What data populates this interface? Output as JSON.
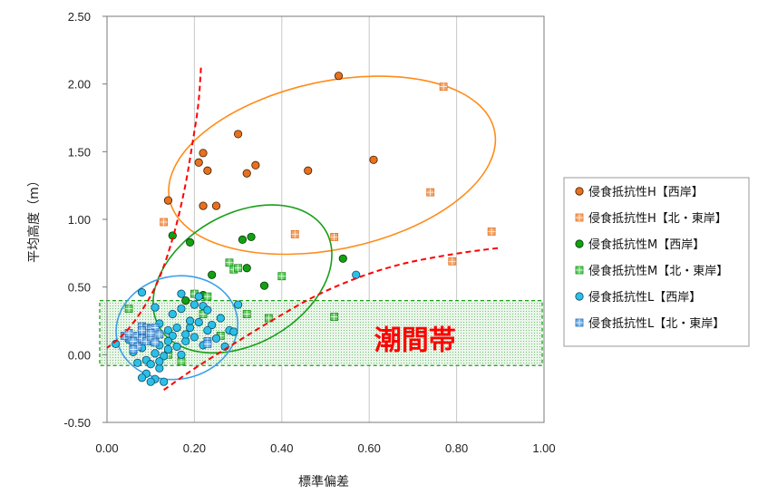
{
  "chart_data": {
    "type": "scatter",
    "xlabel": "標準偏差",
    "ylabel": "平均高度（m）",
    "xlim": [
      0,
      1.0
    ],
    "ylim": [
      -0.5,
      2.5
    ],
    "xticks": [
      "0.00",
      "0.20",
      "0.40",
      "0.60",
      "0.80",
      "1.00"
    ],
    "yticks": [
      "-0.50",
      "0.00",
      "0.50",
      "1.00",
      "1.50",
      "2.00",
      "2.50"
    ],
    "grid": "vertical",
    "legend_position": "right",
    "zone_label": "潮間帯",
    "zone_range": [
      -0.08,
      0.4
    ],
    "colors": {
      "H": "#ff8c1a",
      "M": "#1a9e1a",
      "L": "#3aa0e8",
      "curve": "#ff0000"
    },
    "series": [
      {
        "name": "侵食抵抗性H【西岸】",
        "marker": "circle",
        "fill": "#e8701f",
        "stroke": "#3a2000",
        "points": [
          [
            0.53,
            2.06
          ],
          [
            0.3,
            1.63
          ],
          [
            0.22,
            1.49
          ],
          [
            0.21,
            1.42
          ],
          [
            0.23,
            1.36
          ],
          [
            0.34,
            1.4
          ],
          [
            0.32,
            1.34
          ],
          [
            0.46,
            1.36
          ],
          [
            0.61,
            1.44
          ],
          [
            0.14,
            1.14
          ],
          [
            0.22,
            1.1
          ],
          [
            0.25,
            1.1
          ]
        ]
      },
      {
        "name": "侵食抵抗性H【北・東岸】",
        "marker": "square",
        "fill": "#f5a66b",
        "stroke": "#e07020",
        "points": [
          [
            0.77,
            1.98
          ],
          [
            0.74,
            1.2
          ],
          [
            0.13,
            0.98
          ],
          [
            0.43,
            0.89
          ],
          [
            0.52,
            0.87
          ],
          [
            0.88,
            0.91
          ],
          [
            0.79,
            0.69
          ]
        ]
      },
      {
        "name": "侵食抵抗性M【西岸】",
        "marker": "circle",
        "fill": "#14a014",
        "stroke": "#003a00",
        "points": [
          [
            0.15,
            0.88
          ],
          [
            0.19,
            0.83
          ],
          [
            0.33,
            0.87
          ],
          [
            0.31,
            0.85
          ],
          [
            0.32,
            0.64
          ],
          [
            0.24,
            0.59
          ],
          [
            0.36,
            0.51
          ],
          [
            0.54,
            0.71
          ],
          [
            0.22,
            0.44
          ],
          [
            0.18,
            0.4
          ]
        ]
      },
      {
        "name": "侵食抵抗性M【北・東岸】",
        "marker": "square",
        "fill": "#5fcf5f",
        "stroke": "#1a8a1a",
        "points": [
          [
            0.28,
            0.68
          ],
          [
            0.29,
            0.63
          ],
          [
            0.3,
            0.64
          ],
          [
            0.4,
            0.58
          ],
          [
            0.52,
            0.28
          ],
          [
            0.37,
            0.27
          ],
          [
            0.32,
            0.3
          ],
          [
            0.2,
            0.45
          ],
          [
            0.23,
            0.43
          ],
          [
            0.26,
            0.14
          ],
          [
            0.17,
            -0.05
          ],
          [
            0.22,
            0.3
          ],
          [
            0.14,
            0.0
          ],
          [
            0.05,
            0.34
          ]
        ]
      },
      {
        "name": "侵食抵抗性L【西岸】",
        "marker": "circle",
        "fill": "#2cc0e8",
        "stroke": "#0a4a66",
        "points": [
          [
            0.57,
            0.59
          ],
          [
            0.17,
            0.45
          ],
          [
            0.21,
            0.43
          ],
          [
            0.08,
            0.46
          ],
          [
            0.22,
            0.36
          ],
          [
            0.2,
            0.37
          ],
          [
            0.17,
            0.34
          ],
          [
            0.11,
            0.35
          ],
          [
            0.3,
            0.37
          ],
          [
            0.26,
            0.27
          ],
          [
            0.15,
            0.3
          ],
          [
            0.12,
            0.23
          ],
          [
            0.14,
            0.18
          ],
          [
            0.16,
            0.2
          ],
          [
            0.19,
            0.2
          ],
          [
            0.21,
            0.24
          ],
          [
            0.24,
            0.22
          ],
          [
            0.28,
            0.18
          ],
          [
            0.23,
            0.18
          ],
          [
            0.2,
            0.13
          ],
          [
            0.18,
            0.1
          ],
          [
            0.16,
            0.06
          ],
          [
            0.14,
            0.04
          ],
          [
            0.12,
            0.07
          ],
          [
            0.1,
            0.1
          ],
          [
            0.08,
            0.05
          ],
          [
            0.11,
            0.01
          ],
          [
            0.13,
            -0.01
          ],
          [
            0.09,
            -0.04
          ],
          [
            0.07,
            -0.06
          ],
          [
            0.1,
            -0.07
          ],
          [
            0.12,
            -0.1
          ],
          [
            0.09,
            -0.14
          ],
          [
            0.11,
            -0.18
          ],
          [
            0.08,
            -0.17
          ],
          [
            0.1,
            -0.2
          ],
          [
            0.13,
            -0.2
          ],
          [
            0.02,
            0.08
          ],
          [
            0.15,
            0.14
          ],
          [
            0.22,
            0.07
          ],
          [
            0.25,
            0.12
          ],
          [
            0.29,
            0.17
          ],
          [
            0.27,
            0.06
          ],
          [
            0.18,
            0.15
          ],
          [
            0.14,
            0.1
          ],
          [
            0.06,
            0.02
          ],
          [
            0.05,
            0.11
          ],
          [
            0.23,
            0.33
          ],
          [
            0.19,
            0.25
          ],
          [
            0.17,
            0.0
          ],
          [
            0.12,
            -0.05
          ]
        ]
      },
      {
        "name": "侵食抵抗性L【北・東岸】",
        "marker": "square",
        "fill": "#6fb0e8",
        "stroke": "#2a6ab0",
        "points": [
          [
            0.08,
            0.21
          ],
          [
            0.09,
            0.2
          ],
          [
            0.1,
            0.19
          ],
          [
            0.11,
            0.2
          ],
          [
            0.09,
            0.16
          ],
          [
            0.07,
            0.14
          ],
          [
            0.05,
            0.13
          ],
          [
            0.08,
            0.12
          ],
          [
            0.06,
            0.1
          ],
          [
            0.09,
            0.1
          ],
          [
            0.1,
            0.13
          ],
          [
            0.12,
            0.15
          ],
          [
            0.11,
            0.09
          ],
          [
            0.07,
            0.06
          ],
          [
            0.06,
            0.04
          ],
          [
            0.04,
            0.14
          ],
          [
            0.23,
            0.1
          ],
          [
            0.23,
            0.08
          ],
          [
            0.08,
            0.18
          ],
          [
            0.05,
            0.16
          ],
          [
            0.1,
            0.16
          ]
        ]
      }
    ],
    "ellipses": [
      {
        "group": "H",
        "cx": 0.515,
        "cy": 1.4,
        "rx": 0.38,
        "ry": 0.62,
        "rotate": -12
      },
      {
        "group": "M",
        "cx": 0.31,
        "cy": 0.56,
        "rx": 0.22,
        "ry": 0.48,
        "rotate": -30
      },
      {
        "group": "L",
        "cx": 0.16,
        "cy": 0.2,
        "rx": 0.14,
        "ry": 0.38,
        "rotate": -12
      }
    ],
    "curves": [
      [
        [
          0.215,
          2.12
        ],
        [
          0.21,
          1.85
        ],
        [
          0.195,
          1.55
        ],
        [
          0.18,
          1.25
        ],
        [
          0.155,
          0.9
        ],
        [
          0.12,
          0.55
        ],
        [
          0.08,
          0.32
        ],
        [
          0.04,
          0.15
        ],
        [
          0.0,
          0.05
        ]
      ],
      [
        [
          0.13,
          -0.26
        ],
        [
          0.2,
          -0.1
        ],
        [
          0.28,
          0.06
        ],
        [
          0.38,
          0.26
        ],
        [
          0.5,
          0.48
        ],
        [
          0.65,
          0.66
        ],
        [
          0.8,
          0.75
        ],
        [
          0.9,
          0.79
        ]
      ]
    ]
  }
}
